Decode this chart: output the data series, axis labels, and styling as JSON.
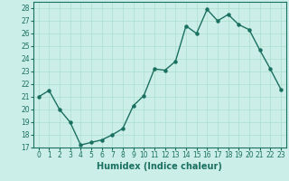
{
  "x": [
    0,
    1,
    2,
    3,
    4,
    5,
    6,
    7,
    8,
    9,
    10,
    11,
    12,
    13,
    14,
    15,
    16,
    17,
    18,
    19,
    20,
    21,
    22,
    23
  ],
  "y": [
    21,
    21.5,
    20,
    19,
    17.2,
    17.4,
    17.6,
    18,
    18.5,
    20.3,
    21.1,
    23.2,
    23.1,
    23.8,
    26.6,
    26.0,
    27.9,
    27.0,
    27.5,
    26.7,
    26.3,
    24.7,
    23.2,
    21.6
  ],
  "line_color": "#1a7060",
  "bg_color": "#cceee8",
  "grid_color": "#aaddcc",
  "xlabel": "Humidex (Indice chaleur)",
  "ylim": [
    17,
    28.5
  ],
  "yticks": [
    17,
    18,
    19,
    20,
    21,
    22,
    23,
    24,
    25,
    26,
    27,
    28
  ],
  "xticks": [
    0,
    1,
    2,
    3,
    4,
    5,
    6,
    7,
    8,
    9,
    10,
    11,
    12,
    13,
    14,
    15,
    16,
    17,
    18,
    19,
    20,
    21,
    22,
    23
  ],
  "marker": "o",
  "markersize": 2.2,
  "linewidth": 1.0,
  "xlabel_fontsize": 7,
  "tick_fontsize": 5.5
}
